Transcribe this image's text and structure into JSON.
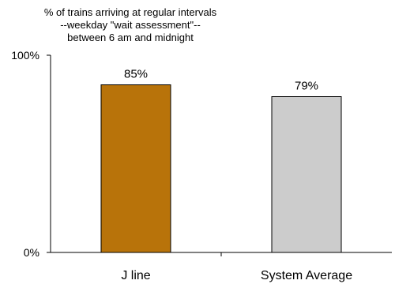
{
  "chart_data": {
    "type": "bar",
    "title_lines": [
      "% of trains arriving at regular intervals",
      "--weekday \"wait assessment\"--",
      "between 6 am and midnight"
    ],
    "categories": [
      "J line",
      "System Average"
    ],
    "values": [
      85,
      79
    ],
    "data_labels": [
      "85%",
      "79%"
    ],
    "colors": [
      "#b8730a",
      "#cccccc"
    ],
    "y_ticks": [
      {
        "value": 0,
        "label": "0%"
      },
      {
        "value": 100,
        "label": "100%"
      }
    ],
    "ylim": [
      0,
      100
    ],
    "grid": false,
    "legend": "none"
  }
}
